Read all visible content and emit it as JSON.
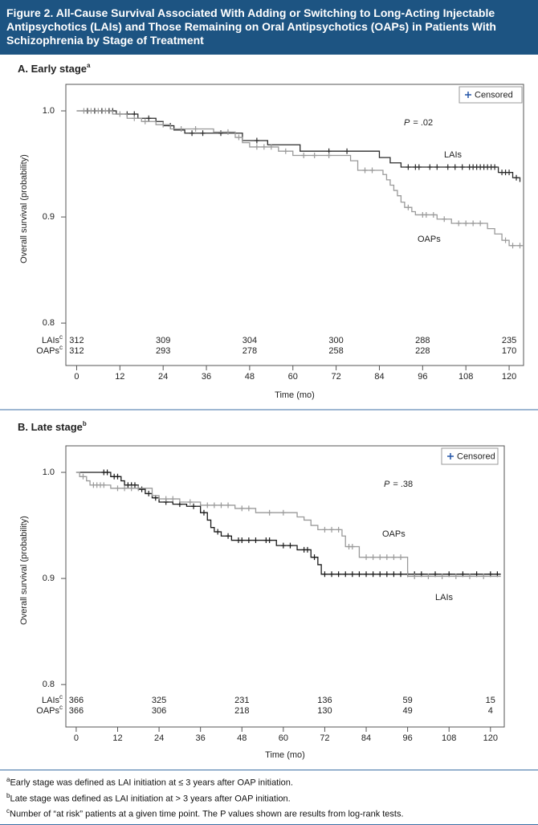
{
  "header": {
    "title": "Figure 2. All-Cause Survival Associated With Adding or Switching to Long-Acting Injectable Antipsychotics (LAIs) and Those Remaining on Oral Antipsychotics (OAPs) in Patients With Schizophrenia by Stage of Treatment"
  },
  "chart_data": [
    {
      "type": "step",
      "title": "A. Early stage",
      "title_sup": "a",
      "legend": "Censored",
      "annotation": {
        "italic": "P",
        "text": "= .02"
      },
      "x_label": "Time (mo)",
      "y_label": "Overall survival (probability)",
      "xlim": [
        -3,
        124
      ],
      "ylim": [
        0.76,
        1.025
      ],
      "xticks": [
        0,
        12,
        24,
        36,
        48,
        60,
        72,
        84,
        96,
        108,
        120
      ],
      "yticks": [
        {
          "value": 0.8,
          "label": "0.8"
        },
        0.9,
        {
          "value": 1.0,
          "label": "1.0"
        }
      ],
      "series": [
        {
          "name": "LAIs",
          "color": "#2b2b2b",
          "x": [
            0,
            11,
            17,
            22,
            24,
            27,
            30,
            46,
            53,
            62,
            84,
            87,
            90,
            117,
            121,
            123
          ],
          "values": [
            1.0,
            0.997,
            0.993,
            0.99,
            0.986,
            0.982,
            0.979,
            0.972,
            0.968,
            0.962,
            0.956,
            0.951,
            0.947,
            0.942,
            0.937,
            0.933
          ],
          "censored_x": [
            3,
            5,
            7,
            9,
            10,
            14,
            16,
            20,
            26,
            32,
            35,
            40,
            50,
            70,
            75,
            92,
            94,
            95,
            98,
            100,
            103,
            105,
            107,
            109,
            110,
            111,
            112,
            113,
            114,
            115,
            116,
            118,
            119,
            120,
            122
          ]
        },
        {
          "name": "OAPs",
          "color": "#9a9a9a",
          "x": [
            0,
            10,
            14,
            18,
            22,
            26,
            38,
            44,
            46,
            48,
            56,
            60,
            76,
            78,
            85,
            86,
            87,
            88,
            89,
            90,
            91,
            93,
            94,
            100,
            104,
            114,
            116,
            118,
            120,
            124
          ],
          "values": [
            1.0,
            0.997,
            0.993,
            0.99,
            0.987,
            0.983,
            0.98,
            0.975,
            0.97,
            0.966,
            0.962,
            0.958,
            0.953,
            0.944,
            0.94,
            0.935,
            0.93,
            0.925,
            0.92,
            0.914,
            0.909,
            0.905,
            0.902,
            0.898,
            0.894,
            0.889,
            0.884,
            0.878,
            0.873,
            0.873
          ],
          "censored_x": [
            2,
            4,
            6,
            8,
            12,
            16,
            19,
            24,
            29,
            33,
            42,
            45,
            50,
            52,
            54,
            58,
            63,
            66,
            70,
            80,
            82,
            92,
            96,
            97,
            99,
            102,
            106,
            108,
            110,
            112,
            119,
            121,
            123
          ]
        }
      ],
      "at_risk": {
        "labels": [
          "LAIs",
          "OAPs"
        ],
        "sup": "c",
        "times": [
          0,
          24,
          48,
          72,
          96,
          120
        ],
        "rows": [
          [
            312,
            309,
            304,
            300,
            288,
            235
          ],
          [
            312,
            293,
            278,
            258,
            228,
            170
          ]
        ]
      }
    },
    {
      "type": "step",
      "title": "B. Late stage",
      "title_sup": "b",
      "legend": "Censored",
      "annotation": {
        "italic": "P",
        "text": "= .38"
      },
      "x_label": "Time (mo)",
      "y_label": "Overall survival (probability)",
      "xlim": [
        -3,
        124
      ],
      "ylim": [
        0.76,
        1.025
      ],
      "xticks": [
        0,
        12,
        24,
        36,
        48,
        60,
        72,
        84,
        96,
        108,
        120
      ],
      "yticks": [
        {
          "value": 0.8,
          "label": "0.8"
        },
        0.9,
        {
          "value": 1.0,
          "label": "1.0"
        }
      ],
      "series": [
        {
          "name": "LAIs",
          "color": "#1a1a1a",
          "x": [
            0,
            10,
            13,
            14,
            18,
            20,
            22,
            24,
            28,
            32,
            36,
            38,
            39,
            40,
            42,
            45,
            58,
            64,
            68,
            70,
            71,
            123
          ],
          "values": [
            1.0,
            0.996,
            0.992,
            0.988,
            0.984,
            0.98,
            0.976,
            0.972,
            0.97,
            0.968,
            0.962,
            0.955,
            0.948,
            0.944,
            0.94,
            0.936,
            0.931,
            0.927,
            0.92,
            0.913,
            0.904,
            0.904
          ],
          "censored_x": [
            8,
            9,
            11,
            12,
            15,
            16,
            17,
            19,
            21,
            23,
            26,
            30,
            34,
            37,
            41,
            44,
            47,
            48,
            50,
            52,
            55,
            56,
            60,
            62,
            66,
            67,
            69,
            72,
            74,
            76,
            78,
            80,
            82,
            84,
            86,
            88,
            90,
            92,
            94,
            96,
            98,
            100,
            104,
            108,
            112,
            116,
            120,
            122
          ]
        },
        {
          "name": "OAPs",
          "color": "#9a9a9a",
          "x": [
            0,
            1,
            3,
            4,
            10,
            22,
            24,
            30,
            36,
            46,
            52,
            64,
            66,
            68,
            70,
            77,
            78,
            82,
            96,
            123
          ],
          "values": [
            1.0,
            0.996,
            0.992,
            0.988,
            0.985,
            0.978,
            0.975,
            0.972,
            0.969,
            0.966,
            0.962,
            0.958,
            0.955,
            0.95,
            0.946,
            0.94,
            0.93,
            0.92,
            0.902,
            0.902
          ],
          "censored_x": [
            2,
            5,
            6,
            7,
            8,
            12,
            14,
            16,
            18,
            26,
            28,
            33,
            38,
            40,
            42,
            44,
            48,
            50,
            56,
            60,
            72,
            74,
            76,
            79,
            80,
            84,
            86,
            88,
            90,
            92,
            94,
            98,
            102,
            106,
            110,
            114,
            118
          ]
        }
      ],
      "at_risk": {
        "labels": [
          "LAIs",
          "OAPs"
        ],
        "sup": "c",
        "times": [
          0,
          24,
          48,
          72,
          96,
          120
        ],
        "rows": [
          [
            366,
            325,
            231,
            136,
            59,
            15
          ],
          [
            366,
            306,
            218,
            130,
            49,
            4
          ]
        ]
      }
    }
  ],
  "footnotes": [
    {
      "mark": "a",
      "text": "Early stage was defined as LAI initiation at ≤ 3 years after OAP initiation."
    },
    {
      "mark": "b",
      "text": "Late stage was defined as LAI initiation at > 3 years after OAP initiation."
    },
    {
      "mark": "c",
      "text": "Number of “at risk” patients at a given time point. The P values shown are results from log-rank tests."
    }
  ]
}
